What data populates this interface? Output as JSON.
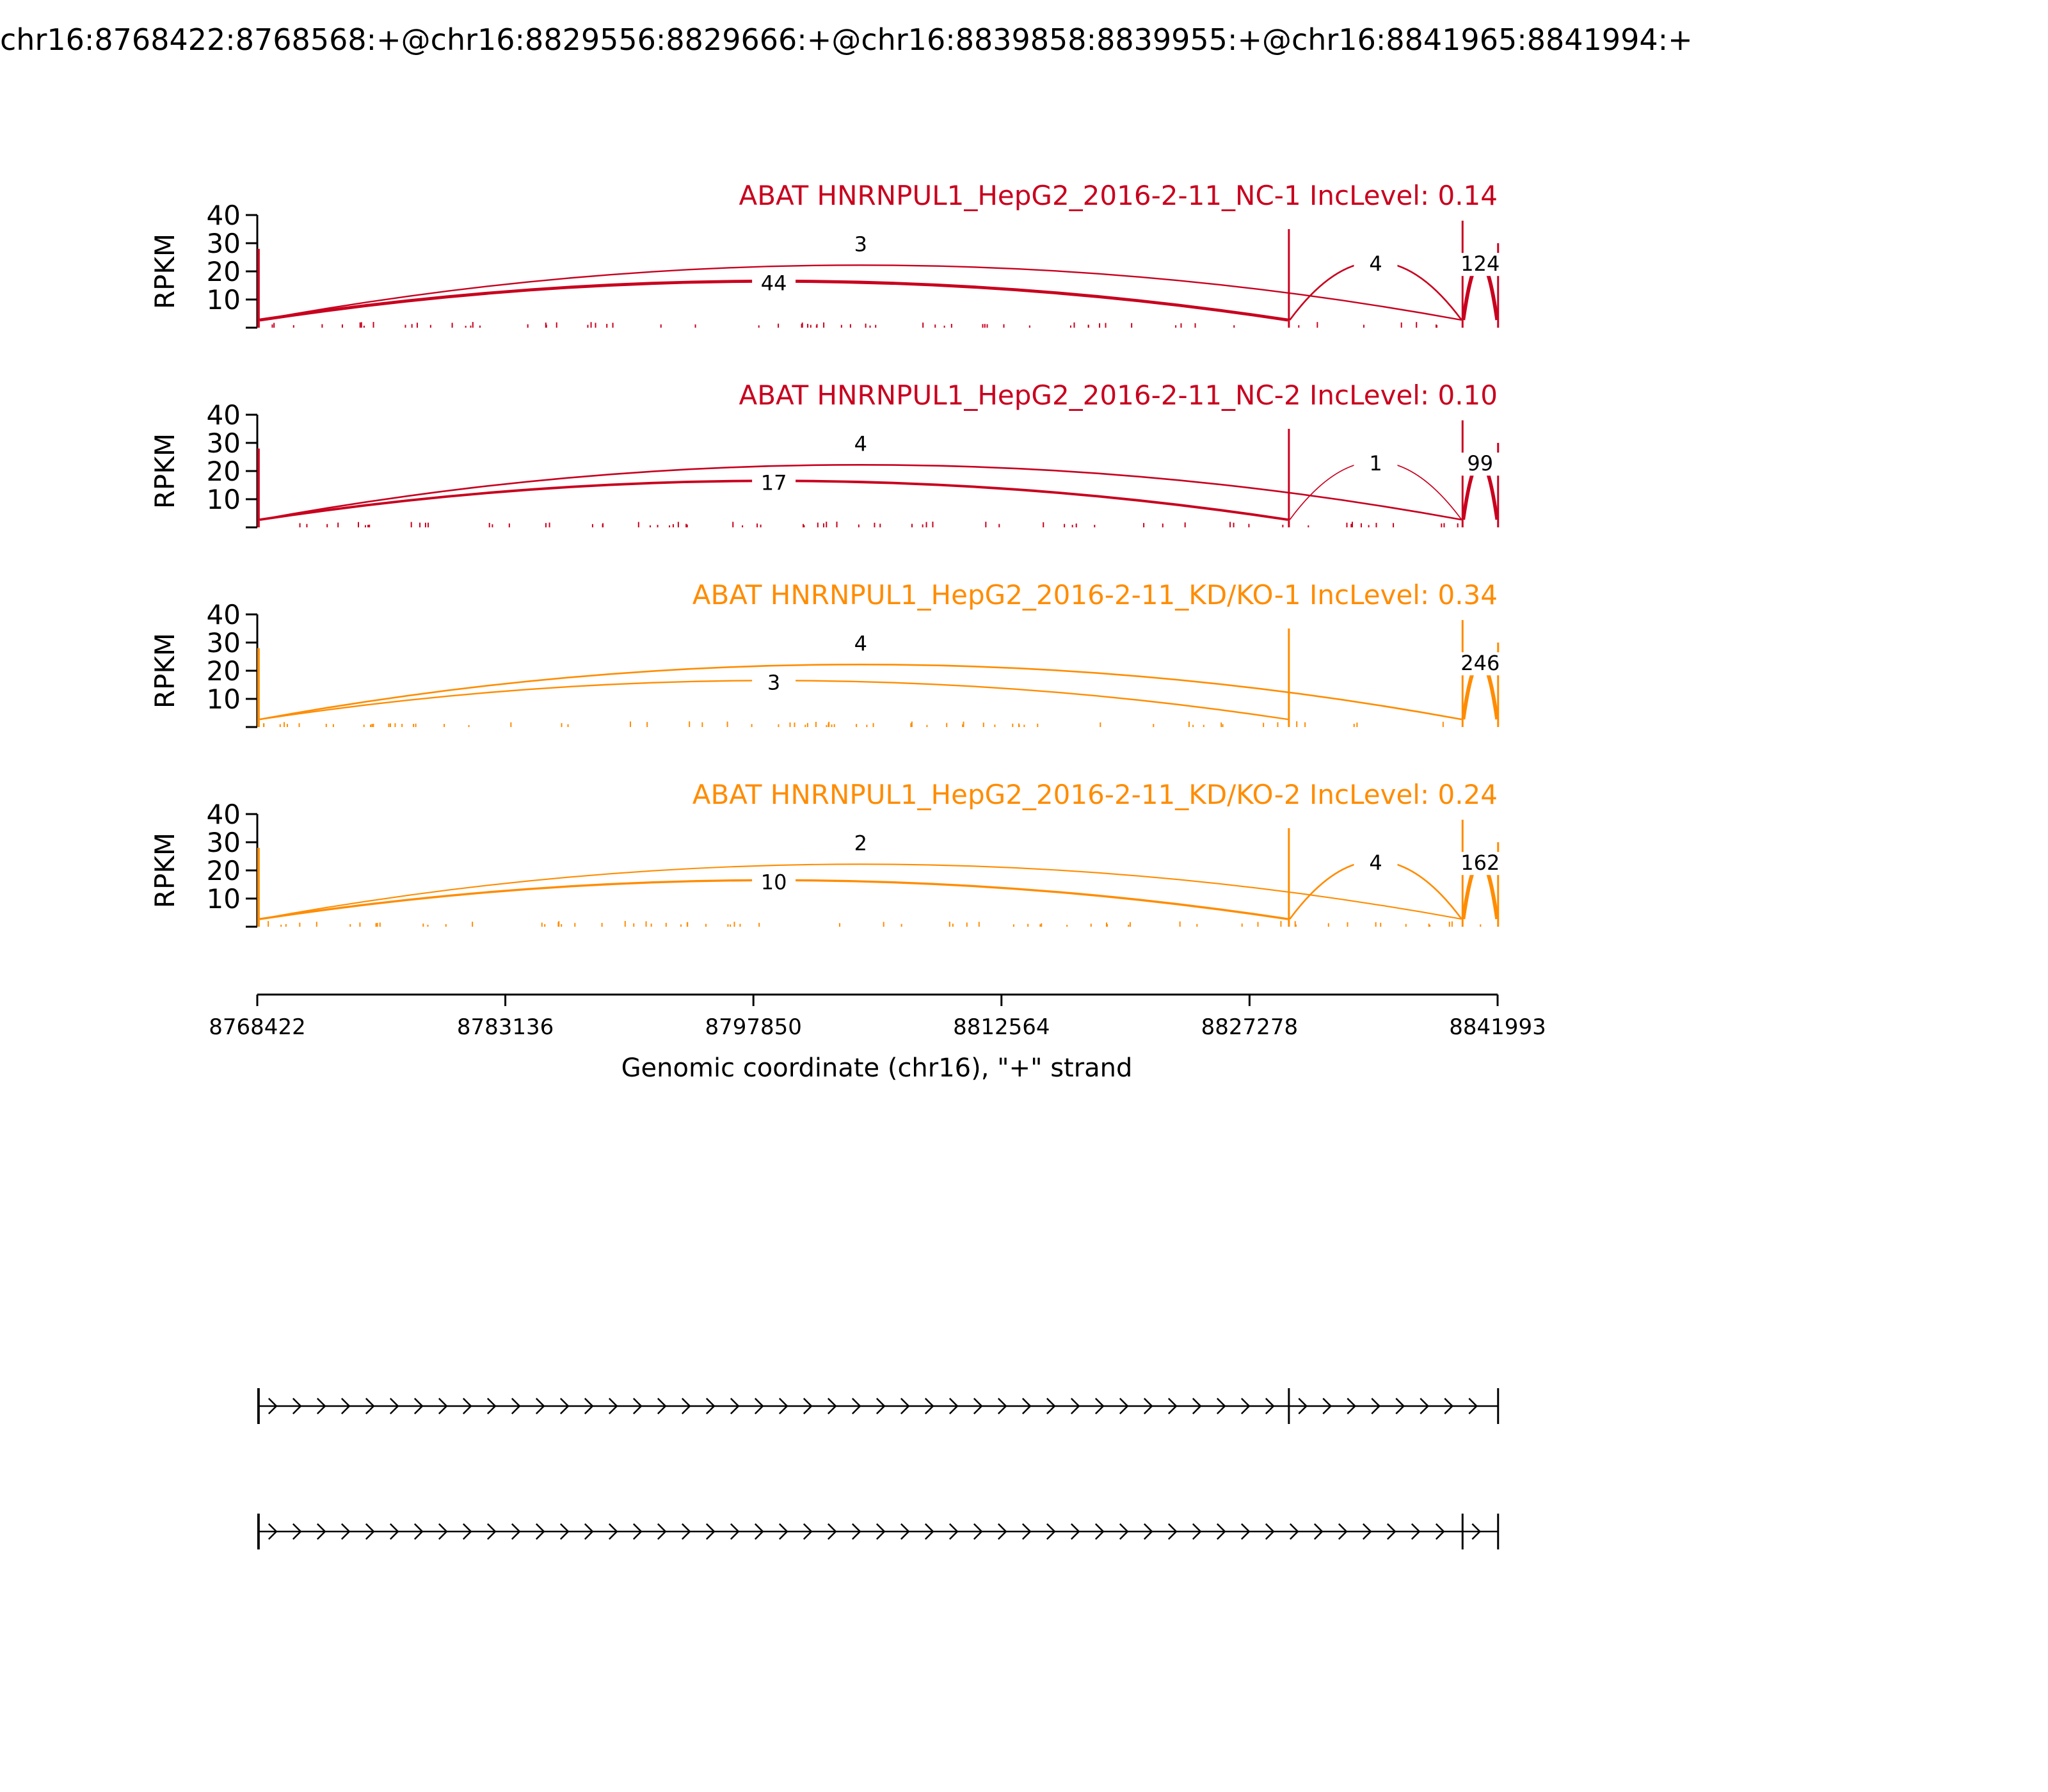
{
  "title": "chr16:8768422:8768568:+@chr16:8829556:8829666:+@chr16:8839858:8839955:+@chr16:8841965:8841994:+",
  "colors": {
    "nc": "#c8001e",
    "kd": "#ff8c00",
    "axis": "#000000"
  },
  "chart_data": {
    "type": "sashimi",
    "xlabel": "Genomic coordinate (chr16), \"+\" strand",
    "xlim": [
      8768422,
      8841993
    ],
    "x_ticks": [
      "8768422",
      "8783136",
      "8797850",
      "8812564",
      "8827278",
      "8841993"
    ],
    "x_tick_values": [
      8768422,
      8783136,
      8797850,
      8812564,
      8827278,
      8841993
    ],
    "ylabel": "RPKM",
    "ylim": [
      0,
      40
    ],
    "y_ticks": [
      "10",
      "20",
      "30",
      "40"
    ],
    "y_tick_values": [
      10,
      20,
      30,
      40
    ],
    "exons": [
      {
        "start": 8768422,
        "end": 8768568
      },
      {
        "start": 8829556,
        "end": 8829666
      },
      {
        "start": 8839858,
        "end": 8839955
      },
      {
        "start": 8841965,
        "end": 8841994
      }
    ],
    "panels": [
      {
        "label": "ABAT HNRNPUL1_HepG2_2016-2-11_NC-1 IncLevel: 0.14",
        "group": "nc",
        "junctions": [
          {
            "label": "44",
            "value": 44,
            "from": 8768568,
            "to": 8829556
          },
          {
            "label": "3",
            "value": 3,
            "from": 8768568,
            "to": 8839858
          },
          {
            "label": "4",
            "value": 4,
            "from": 8829666,
            "to": 8839858
          },
          {
            "label": "124",
            "value": 124,
            "from": 8839955,
            "to": 8841965
          }
        ]
      },
      {
        "label": "ABAT HNRNPUL1_HepG2_2016-2-11_NC-2 IncLevel: 0.10",
        "group": "nc",
        "junctions": [
          {
            "label": "17",
            "value": 17,
            "from": 8768568,
            "to": 8829556
          },
          {
            "label": "4",
            "value": 4,
            "from": 8768568,
            "to": 8839858
          },
          {
            "label": "1",
            "value": 1,
            "from": 8829666,
            "to": 8839858
          },
          {
            "label": "99",
            "value": 99,
            "from": 8839955,
            "to": 8841965
          }
        ]
      },
      {
        "label": "ABAT HNRNPUL1_HepG2_2016-2-11_KD/KO-1 IncLevel: 0.34",
        "group": "kd",
        "junctions": [
          {
            "label": "3",
            "value": 3,
            "from": 8768568,
            "to": 8829556
          },
          {
            "label": "4",
            "value": 4,
            "from": 8768568,
            "to": 8839858
          },
          {
            "label": "246",
            "value": 246,
            "from": 8839955,
            "to": 8841965
          }
        ]
      },
      {
        "label": "ABAT HNRNPUL1_HepG2_2016-2-11_KD/KO-2 IncLevel: 0.24",
        "group": "kd",
        "junctions": [
          {
            "label": "10",
            "value": 10,
            "from": 8768568,
            "to": 8829556
          },
          {
            "label": "2",
            "value": 2,
            "from": 8768568,
            "to": 8839858
          },
          {
            "label": "4",
            "value": 4,
            "from": 8829666,
            "to": 8839858
          },
          {
            "label": "162",
            "value": 162,
            "from": 8839955,
            "to": 8841965
          }
        ]
      }
    ],
    "isoforms": [
      {
        "exons": [
          [
            8768422,
            8768568
          ],
          [
            8829556,
            8829666
          ],
          [
            8841965,
            8841994
          ]
        ]
      },
      {
        "exons": [
          [
            8768422,
            8768568
          ],
          [
            8839858,
            8839955
          ],
          [
            8841965,
            8841994
          ]
        ]
      }
    ]
  }
}
